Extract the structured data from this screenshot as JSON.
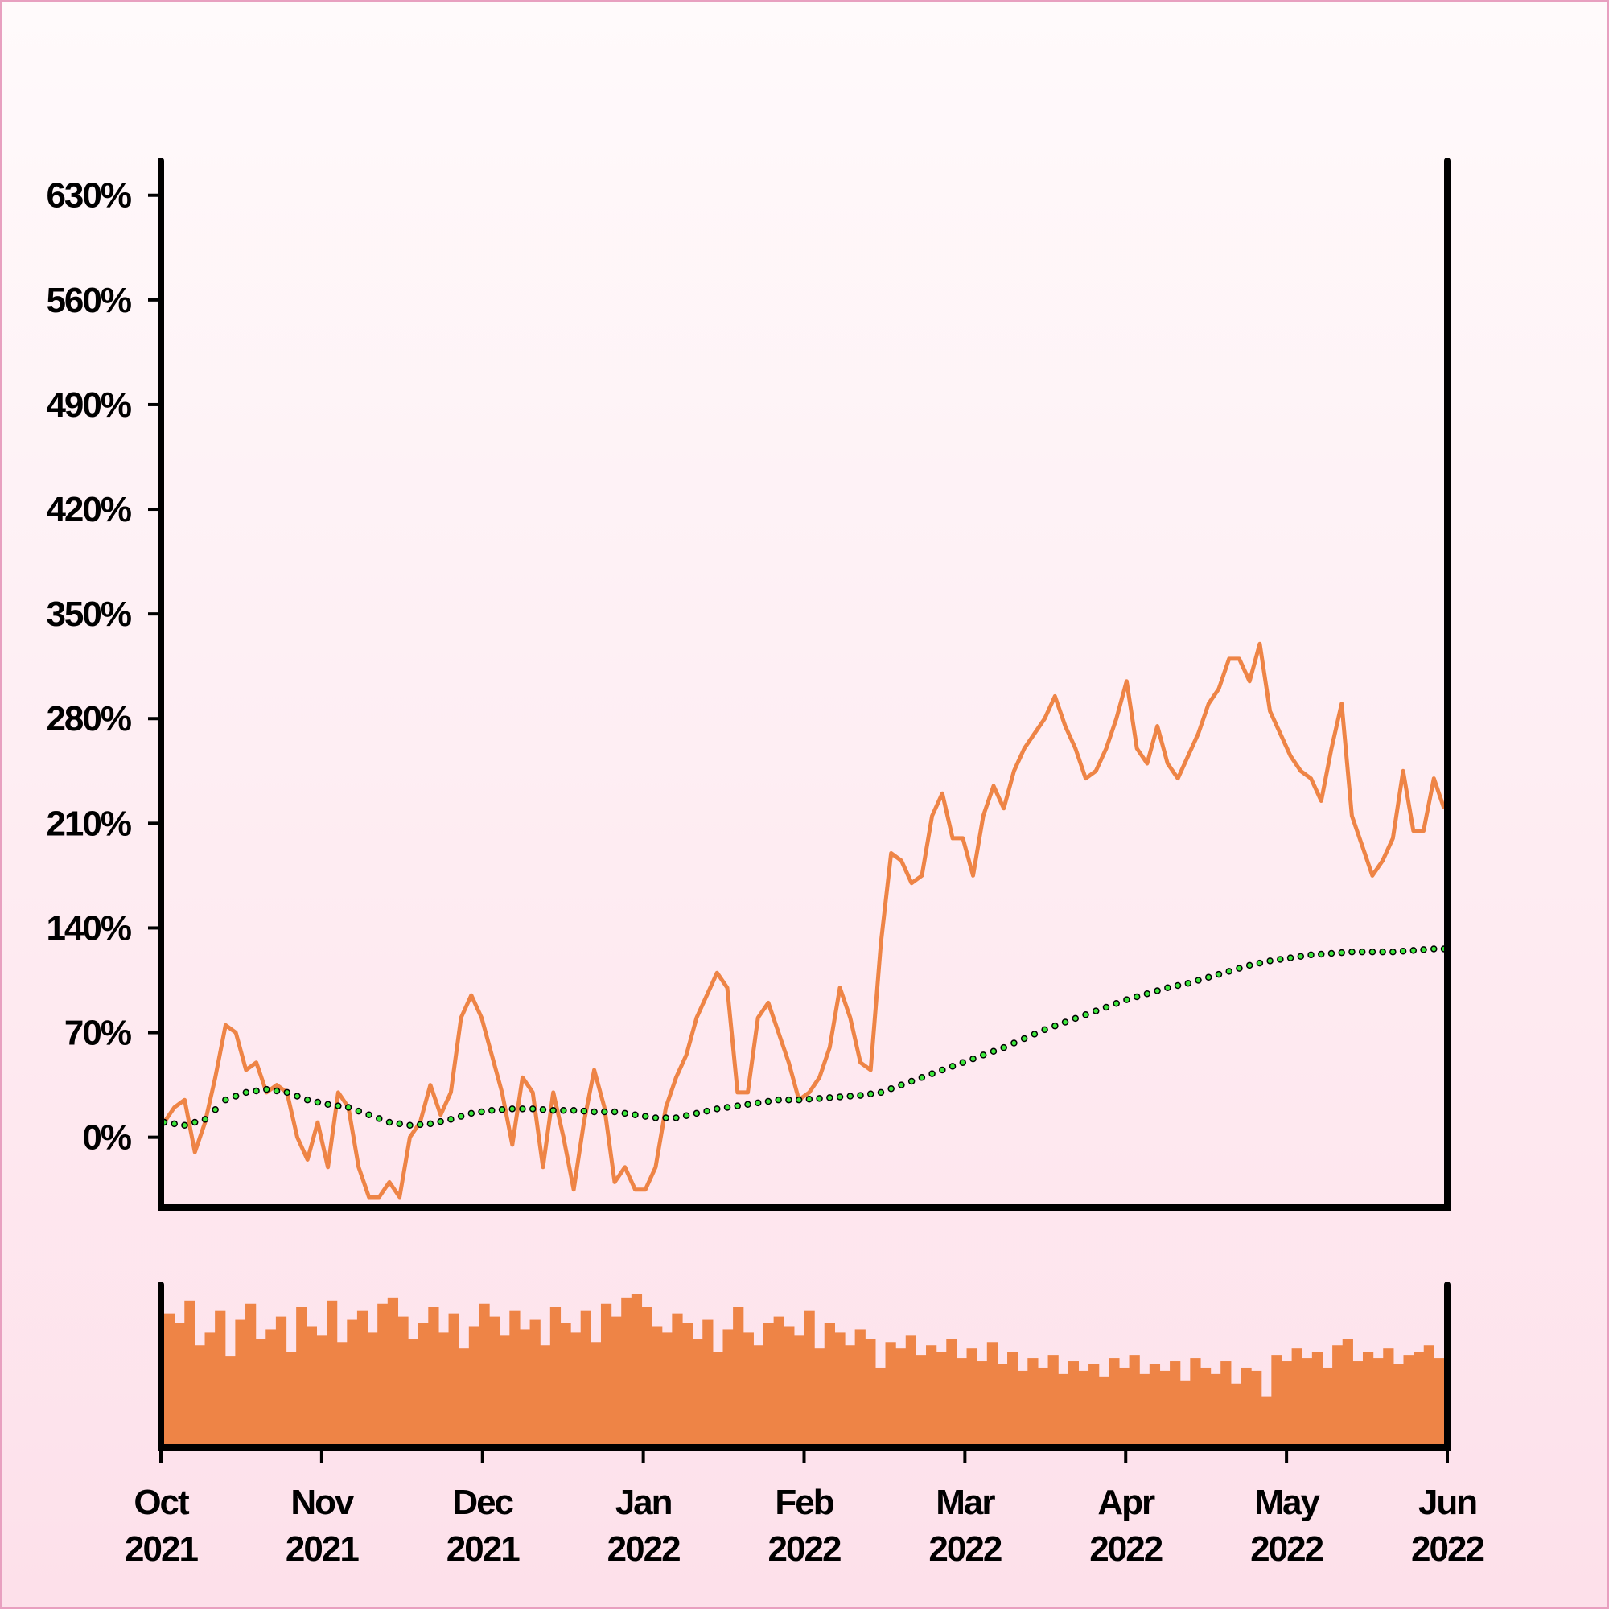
{
  "chart_data": {
    "type": "line",
    "x_tick_labels": [
      [
        "Oct",
        "2021"
      ],
      [
        "Nov",
        "2021"
      ],
      [
        "Dec",
        "2021"
      ],
      [
        "Jan",
        "2022"
      ],
      [
        "Feb",
        "2022"
      ],
      [
        "Mar",
        "2022"
      ],
      [
        "Apr",
        "2022"
      ],
      [
        "May",
        "2022"
      ],
      [
        "Jun",
        "2022"
      ]
    ],
    "ylim": [
      -47,
      653
    ],
    "yticks": [
      {
        "value": 0,
        "label": "0%"
      },
      {
        "value": 70,
        "label": "70%"
      },
      {
        "value": 140,
        "label": "140%"
      },
      {
        "value": 210,
        "label": "210%"
      },
      {
        "value": 280,
        "label": "280%"
      },
      {
        "value": 350,
        "label": "350%"
      },
      {
        "value": 420,
        "label": "420%"
      },
      {
        "value": 490,
        "label": "490%"
      },
      {
        "value": 560,
        "label": "560%"
      },
      {
        "value": 630,
        "label": "630%"
      }
    ],
    "series": [
      {
        "color": "#ee8446",
        "values": [
          10,
          20,
          25,
          -10,
          10,
          40,
          75,
          70,
          45,
          50,
          30,
          35,
          30,
          0,
          -15,
          10,
          -20,
          30,
          20,
          -20,
          -40,
          -40,
          -30,
          -40,
          0,
          10,
          35,
          15,
          30,
          80,
          95,
          80,
          55,
          30,
          -5,
          40,
          30,
          -20,
          30,
          0,
          -35,
          10,
          45,
          20,
          -30,
          -20,
          -35,
          -35,
          -20,
          20,
          40,
          55,
          80,
          95,
          110,
          100,
          30,
          30,
          80,
          90,
          70,
          50,
          25,
          30,
          40,
          60,
          100,
          80,
          50,
          45,
          130,
          190,
          185,
          170,
          175,
          215,
          230,
          200,
          200,
          175,
          215,
          235,
          220,
          245,
          260,
          270,
          280,
          295,
          275,
          260,
          240,
          245,
          260,
          280,
          305,
          260,
          250,
          275,
          250,
          240,
          255,
          270,
          290,
          300,
          320,
          320,
          305,
          330,
          285,
          270,
          255,
          245,
          240,
          225,
          260,
          290,
          215,
          195,
          175,
          185,
          200,
          245,
          205,
          205,
          240,
          220
        ]
      },
      {
        "color": "#3ee83e",
        "style": "dotted",
        "values": [
          10,
          9,
          8,
          10,
          12,
          18.5,
          25,
          27.5,
          30,
          31,
          32,
          31,
          30,
          27.5,
          25,
          23.5,
          22,
          21,
          20,
          17.5,
          15,
          12.5,
          10,
          9,
          8,
          8.5,
          9,
          10.5,
          12,
          14,
          16,
          17,
          18,
          18.5,
          19,
          19,
          19,
          18.5,
          18,
          18,
          18,
          17.5,
          17,
          17,
          17,
          16,
          15,
          14,
          13,
          13,
          13,
          14.5,
          16,
          17.5,
          19,
          20,
          21,
          22,
          23,
          24,
          25,
          25,
          25,
          25.5,
          26,
          26.5,
          27,
          27.5,
          28,
          29,
          30,
          32.5,
          35,
          37.5,
          40,
          42.5,
          45,
          47.5,
          50,
          52.5,
          55,
          57.5,
          60,
          63,
          66,
          69,
          72,
          74.5,
          77,
          79.5,
          82,
          84.5,
          87,
          89.5,
          92,
          94,
          96,
          98,
          100,
          101.5,
          103,
          105,
          107,
          109,
          111,
          113,
          115,
          116.5,
          118,
          119,
          120,
          121,
          122,
          122.5,
          123,
          123.5,
          124,
          124,
          124,
          124,
          124,
          124.5,
          125,
          125.5,
          126,
          126
        ]
      }
    ],
    "volume": {
      "color": "#ee8446",
      "vlim": [
        0,
        100
      ],
      "values": [
        82,
        76,
        90,
        62,
        70,
        84,
        55,
        78,
        88,
        66,
        72,
        80,
        58,
        86,
        74,
        68,
        90,
        64,
        78,
        84,
        70,
        88,
        92,
        80,
        66,
        76,
        86,
        70,
        82,
        60,
        74,
        88,
        80,
        68,
        84,
        72,
        78,
        62,
        86,
        76,
        70,
        84,
        64,
        88,
        80,
        92,
        94,
        86,
        74,
        70,
        82,
        76,
        66,
        78,
        58,
        72,
        86,
        70,
        62,
        76,
        80,
        74,
        68,
        84,
        60,
        76,
        70,
        62,
        72,
        66,
        48,
        64,
        60,
        68,
        56,
        62,
        58,
        66,
        54,
        60,
        52,
        64,
        50,
        58,
        46,
        54,
        48,
        56,
        44,
        52,
        46,
        50,
        42,
        54,
        48,
        56,
        44,
        50,
        46,
        52,
        40,
        54,
        48,
        44,
        52,
        38,
        48,
        46,
        30,
        56,
        52,
        60,
        54,
        58,
        48,
        62,
        66,
        52,
        58,
        54,
        60,
        50,
        56,
        58,
        62,
        54
      ]
    }
  }
}
